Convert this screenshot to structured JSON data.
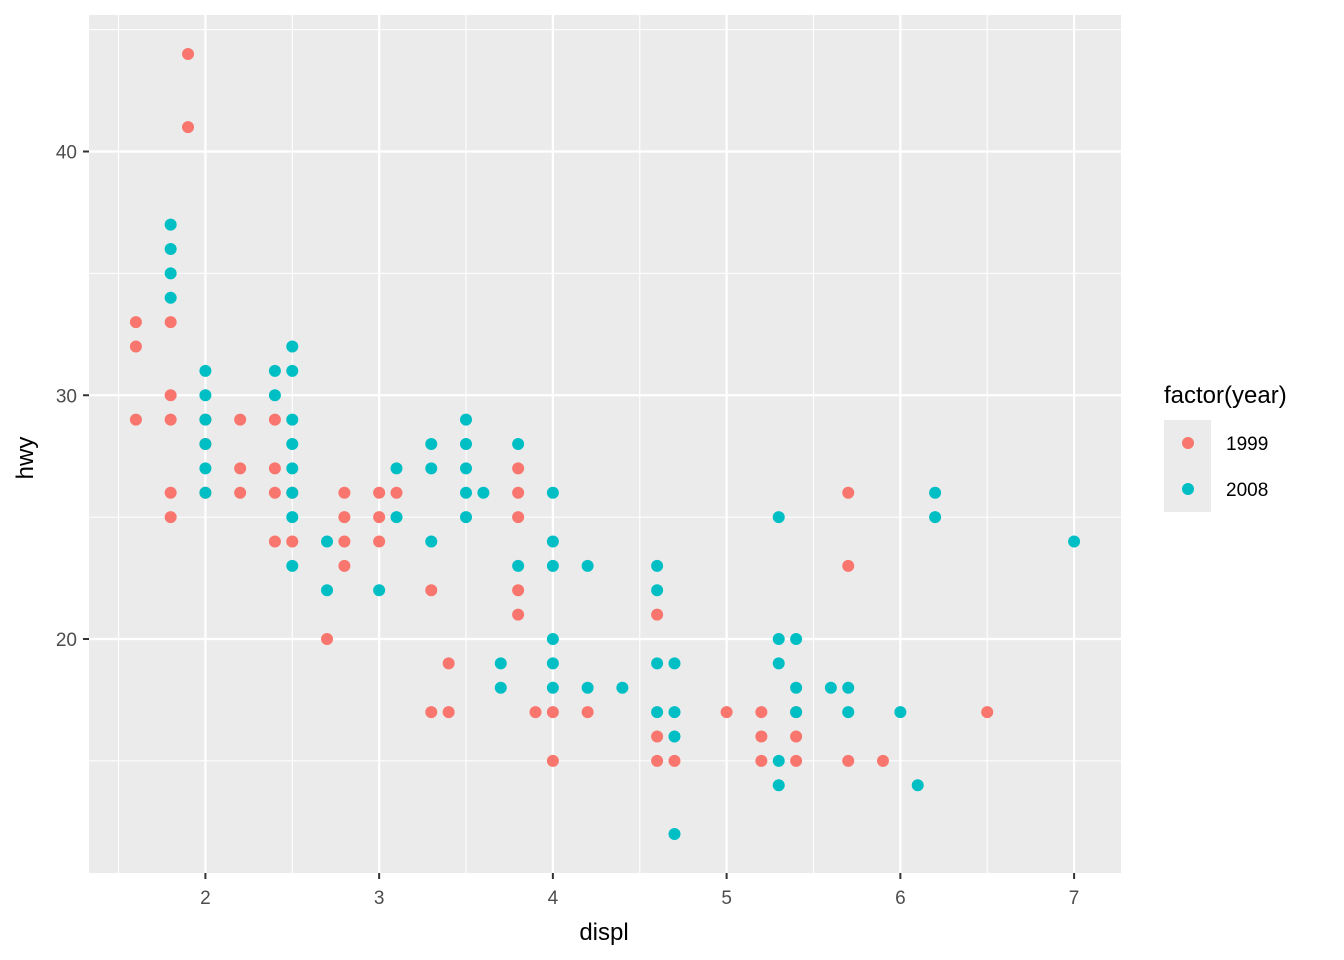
{
  "chart_data": {
    "type": "scatter",
    "xlabel": "displ",
    "ylabel": "hwy",
    "xlim": [
      1.33,
      7.27
    ],
    "ylim": [
      10.4,
      45.6
    ],
    "x_ticks": [
      2,
      3,
      4,
      5,
      6,
      7
    ],
    "y_ticks": [
      20,
      30,
      40
    ],
    "grid": true,
    "legend": {
      "title": "factor(year)",
      "position": "right"
    },
    "series": [
      {
        "name": "1999",
        "color": "#F8766D",
        "points": [
          [
            1.6,
            29
          ],
          [
            1.6,
            32
          ],
          [
            1.6,
            33
          ],
          [
            1.8,
            25
          ],
          [
            1.8,
            26
          ],
          [
            1.8,
            29
          ],
          [
            1.8,
            30
          ],
          [
            1.8,
            33
          ],
          [
            1.9,
            41
          ],
          [
            1.9,
            44
          ],
          [
            2.0,
            26
          ],
          [
            2.0,
            28
          ],
          [
            2.0,
            29
          ],
          [
            2.2,
            26
          ],
          [
            2.2,
            27
          ],
          [
            2.2,
            29
          ],
          [
            2.4,
            24
          ],
          [
            2.4,
            26
          ],
          [
            2.4,
            27
          ],
          [
            2.4,
            29
          ],
          [
            2.5,
            24
          ],
          [
            2.5,
            26
          ],
          [
            2.7,
            20
          ],
          [
            2.8,
            23
          ],
          [
            2.8,
            24
          ],
          [
            2.8,
            25
          ],
          [
            2.8,
            26
          ],
          [
            3.0,
            24
          ],
          [
            3.0,
            25
          ],
          [
            3.0,
            26
          ],
          [
            3.1,
            26
          ],
          [
            3.3,
            17
          ],
          [
            3.3,
            22
          ],
          [
            3.4,
            17
          ],
          [
            3.4,
            19
          ],
          [
            3.8,
            21
          ],
          [
            3.8,
            22
          ],
          [
            3.8,
            25
          ],
          [
            3.8,
            26
          ],
          [
            3.8,
            27
          ],
          [
            3.9,
            17
          ],
          [
            4.0,
            15
          ],
          [
            4.0,
            17
          ],
          [
            4.2,
            17
          ],
          [
            4.6,
            15
          ],
          [
            4.6,
            16
          ],
          [
            4.6,
            21
          ],
          [
            4.7,
            15
          ],
          [
            5.0,
            17
          ],
          [
            5.2,
            15
          ],
          [
            5.2,
            16
          ],
          [
            5.2,
            17
          ],
          [
            5.4,
            15
          ],
          [
            5.4,
            16
          ],
          [
            5.4,
            17
          ],
          [
            5.7,
            15
          ],
          [
            5.7,
            23
          ],
          [
            5.7,
            26
          ],
          [
            5.9,
            15
          ],
          [
            6.5,
            17
          ]
        ]
      },
      {
        "name": "2008",
        "color": "#00BFC4",
        "points": [
          [
            1.8,
            34
          ],
          [
            1.8,
            35
          ],
          [
            1.8,
            36
          ],
          [
            1.8,
            37
          ],
          [
            2.0,
            26
          ],
          [
            2.0,
            27
          ],
          [
            2.0,
            28
          ],
          [
            2.0,
            29
          ],
          [
            2.0,
            30
          ],
          [
            2.0,
            31
          ],
          [
            2.4,
            30
          ],
          [
            2.4,
            31
          ],
          [
            2.5,
            23
          ],
          [
            2.5,
            25
          ],
          [
            2.5,
            26
          ],
          [
            2.5,
            27
          ],
          [
            2.5,
            28
          ],
          [
            2.5,
            29
          ],
          [
            2.5,
            31
          ],
          [
            2.5,
            32
          ],
          [
            2.7,
            22
          ],
          [
            2.7,
            24
          ],
          [
            3.0,
            22
          ],
          [
            3.1,
            25
          ],
          [
            3.1,
            27
          ],
          [
            3.3,
            24
          ],
          [
            3.3,
            27
          ],
          [
            3.3,
            28
          ],
          [
            3.5,
            25
          ],
          [
            3.5,
            26
          ],
          [
            3.5,
            27
          ],
          [
            3.5,
            28
          ],
          [
            3.5,
            29
          ],
          [
            3.6,
            26
          ],
          [
            3.7,
            18
          ],
          [
            3.7,
            19
          ],
          [
            3.8,
            23
          ],
          [
            3.8,
            28
          ],
          [
            4.0,
            18
          ],
          [
            4.0,
            19
          ],
          [
            4.0,
            20
          ],
          [
            4.0,
            23
          ],
          [
            4.0,
            24
          ],
          [
            4.0,
            26
          ],
          [
            4.2,
            18
          ],
          [
            4.2,
            23
          ],
          [
            4.4,
            18
          ],
          [
            4.6,
            17
          ],
          [
            4.6,
            19
          ],
          [
            4.6,
            22
          ],
          [
            4.6,
            23
          ],
          [
            4.7,
            12
          ],
          [
            4.7,
            16
          ],
          [
            4.7,
            17
          ],
          [
            4.7,
            19
          ],
          [
            5.3,
            14
          ],
          [
            5.3,
            15
          ],
          [
            5.3,
            19
          ],
          [
            5.3,
            20
          ],
          [
            5.3,
            25
          ],
          [
            5.4,
            17
          ],
          [
            5.4,
            18
          ],
          [
            5.4,
            20
          ],
          [
            5.6,
            18
          ],
          [
            5.7,
            17
          ],
          [
            5.7,
            18
          ],
          [
            6.0,
            17
          ],
          [
            6.1,
            14
          ],
          [
            6.2,
            25
          ],
          [
            6.2,
            26
          ],
          [
            7.0,
            24
          ]
        ]
      }
    ]
  }
}
